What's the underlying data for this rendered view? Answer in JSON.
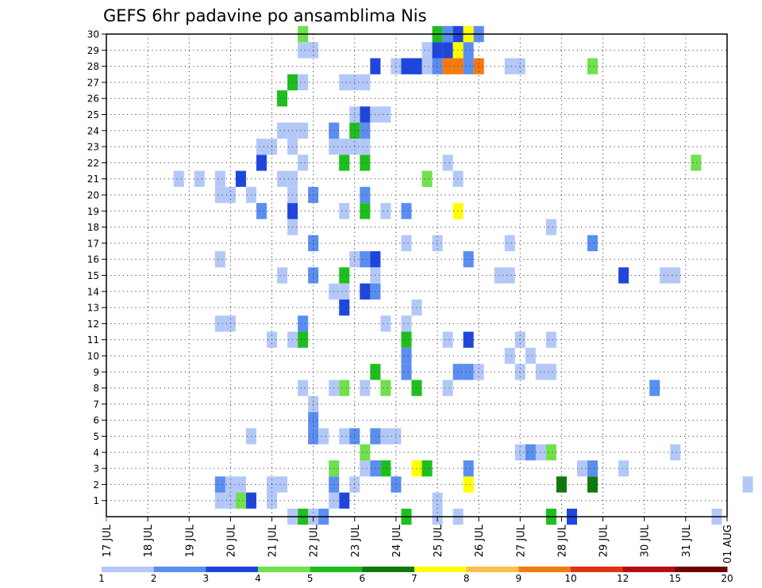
{
  "chart_data": {
    "type": "heatmap",
    "title": "GEFS 6hr padavine po ansamblima Nis",
    "xlabel": "",
    "ylabel": "",
    "x_ticks": [
      "17 JUL",
      "18 JUL",
      "19 JUL",
      "20 JUL",
      "21 JUL",
      "22 JUL",
      "23 JUL",
      "24 JUL",
      "25 JUL",
      "26 JUL",
      "27 JUL",
      "28 JUL",
      "29 JUL",
      "30 JUL",
      "31 JUL",
      "01 AUG"
    ],
    "y_ticks": [
      "1",
      "2",
      "3",
      "4",
      "5",
      "6",
      "7",
      "8",
      "9",
      "10",
      "11",
      "12",
      "13",
      "14",
      "15",
      "16",
      "17",
      "18",
      "19",
      "20",
      "21",
      "22",
      "23",
      "24",
      "25",
      "26",
      "27",
      "28",
      "29",
      "30"
    ],
    "x_unit": "days from 17 JUL 00Z, 6-hour steps",
    "ylim": [
      0,
      30
    ],
    "grid": true,
    "legend": {
      "position": "bottom",
      "levels": [
        "1",
        "2",
        "3",
        "4",
        "5",
        "6",
        "7",
        "8",
        "9",
        "10",
        "12",
        "15",
        "20"
      ],
      "colors": [
        "#b4c8f8",
        "#5a8ef0",
        "#1f46dc",
        "#6fe04e",
        "#1fbe1f",
        "#0e7a0e",
        "#ffff00",
        "#ffbf46",
        "#f47a10",
        "#e1330f",
        "#b40e0e",
        "#6e0000"
      ]
    },
    "cells": [
      [
        8.0,
        1,
        "#b4c8f8"
      ],
      [
        5.75,
        1,
        "#1f46dc"
      ],
      [
        5.5,
        1,
        "#b4c8f8"
      ],
      [
        4.0,
        1,
        "#b4c8f8"
      ],
      [
        3.5,
        1,
        "#1f46dc"
      ],
      [
        3.25,
        1,
        "#6fe04e"
      ],
      [
        3.0,
        1,
        "#b4c8f8"
      ],
      [
        2.75,
        1,
        "#b4c8f8"
      ],
      [
        15.5,
        2,
        "#b4c8f8"
      ],
      [
        11.0,
        2,
        "#0e7a0e"
      ],
      [
        11.75,
        2,
        "#0e7a0e"
      ],
      [
        5.5,
        2,
        "#5a8ef0"
      ],
      [
        8.75,
        2,
        "#ffff00"
      ],
      [
        7.0,
        2,
        "#5a8ef0"
      ],
      [
        2.75,
        2,
        "#5a8ef0"
      ],
      [
        3.0,
        2,
        "#b4c8f8"
      ],
      [
        3.25,
        2,
        "#b4c8f8"
      ],
      [
        4.0,
        2,
        "#b4c8f8"
      ],
      [
        4.25,
        2,
        "#b4c8f8"
      ],
      [
        6.0,
        2,
        "#b4c8f8"
      ],
      [
        12.5,
        3,
        "#b4c8f8"
      ],
      [
        11.5,
        3,
        "#b4c8f8"
      ],
      [
        11.75,
        3,
        "#5a8ef0"
      ],
      [
        7.75,
        3,
        "#b4c8f8"
      ],
      [
        8.75,
        3,
        "#5a8ef0"
      ],
      [
        6.75,
        3,
        "#1fbe1f"
      ],
      [
        5.5,
        3,
        "#6fe04e"
      ],
      [
        6.25,
        3,
        "#b4c8f8"
      ],
      [
        6.5,
        3,
        "#5a8ef0"
      ],
      [
        7.5,
        3,
        "#ffff00"
      ],
      [
        7.75,
        3,
        "#1fbe1f"
      ],
      [
        13.75,
        4,
        "#b4c8f8"
      ],
      [
        10.5,
        4,
        "#b4c8f8"
      ],
      [
        10.75,
        4,
        "#6fe04e"
      ],
      [
        10.25,
        4,
        "#5a8ef0"
      ],
      [
        10.0,
        4,
        "#b4c8f8"
      ],
      [
        6.25,
        4,
        "#6fe04e"
      ],
      [
        5.0,
        5,
        "#5a8ef0"
      ],
      [
        6.75,
        5,
        "#b4c8f8"
      ],
      [
        5.75,
        5,
        "#b4c8f8"
      ],
      [
        6.0,
        5,
        "#5a8ef0"
      ],
      [
        3.5,
        5,
        "#b4c8f8"
      ],
      [
        6.5,
        5,
        "#5a8ef0"
      ],
      [
        7.0,
        5,
        "#b4c8f8"
      ],
      [
        5.25,
        5,
        "#b4c8f8"
      ],
      [
        5.0,
        6,
        "#5a8ef0"
      ],
      [
        5.0,
        7,
        "#b4c8f8"
      ],
      [
        8.25,
        8,
        "#b4c8f8"
      ],
      [
        4.75,
        8,
        "#b4c8f8"
      ],
      [
        5.75,
        8,
        "#6fe04e"
      ],
      [
        5.5,
        8,
        "#b4c8f8"
      ],
      [
        7.5,
        8,
        "#1fbe1f"
      ],
      [
        6.25,
        8,
        "#b4c8f8"
      ],
      [
        13.25,
        8,
        "#5a8ef0"
      ],
      [
        6.75,
        8,
        "#6fe04e"
      ],
      [
        8.5,
        9,
        "#5a8ef0"
      ],
      [
        8.75,
        9,
        "#5a8ef0"
      ],
      [
        10.5,
        9,
        "#b4c8f8"
      ],
      [
        7.25,
        9,
        "#5a8ef0"
      ],
      [
        10.75,
        9,
        "#b4c8f8"
      ],
      [
        9.0,
        9,
        "#b4c8f8"
      ],
      [
        6.5,
        9,
        "#1fbe1f"
      ],
      [
        10.0,
        9,
        "#b4c8f8"
      ],
      [
        7.25,
        10,
        "#5a8ef0"
      ],
      [
        10.25,
        10,
        "#b4c8f8"
      ],
      [
        9.75,
        10,
        "#b4c8f8"
      ],
      [
        8.75,
        11,
        "#1f46dc"
      ],
      [
        10.0,
        11,
        "#b4c8f8"
      ],
      [
        10.75,
        11,
        "#b4c8f8"
      ],
      [
        7.25,
        11,
        "#1fbe1f"
      ],
      [
        4.0,
        11,
        "#b4c8f8"
      ],
      [
        8.25,
        11,
        "#b4c8f8"
      ],
      [
        4.5,
        11,
        "#b4c8f8"
      ],
      [
        4.75,
        11,
        "#1fbe1f"
      ],
      [
        4.75,
        12,
        "#5a8ef0"
      ],
      [
        6.75,
        12,
        "#b4c8f8"
      ],
      [
        7.25,
        12,
        "#b4c8f8"
      ],
      [
        3.0,
        12,
        "#b4c8f8"
      ],
      [
        2.75,
        12,
        "#b4c8f8"
      ],
      [
        5.75,
        13,
        "#1f46dc"
      ],
      [
        7.5,
        13,
        "#b4c8f8"
      ],
      [
        5.75,
        14,
        "#b4c8f8"
      ],
      [
        6.5,
        14,
        "#5a8ef0"
      ],
      [
        5.5,
        14,
        "#b4c8f8"
      ],
      [
        6.25,
        14,
        "#1f46dc"
      ],
      [
        6.5,
        15,
        "#b4c8f8"
      ],
      [
        5.0,
        15,
        "#5a8ef0"
      ],
      [
        9.5,
        15,
        "#b4c8f8"
      ],
      [
        12.5,
        15,
        "#1f46dc"
      ],
      [
        4.25,
        15,
        "#b4c8f8"
      ],
      [
        5.75,
        15,
        "#1fbe1f"
      ],
      [
        9.75,
        15,
        "#b4c8f8"
      ],
      [
        13.5,
        15,
        "#b4c8f8"
      ],
      [
        13.75,
        15,
        "#b4c8f8"
      ],
      [
        6.25,
        16,
        "#ffff00"
      ],
      [
        2.75,
        16,
        "#b4c8f8"
      ],
      [
        6.0,
        16,
        "#b4c8f8"
      ],
      [
        6.25,
        16,
        "#5a8ef0"
      ],
      [
        6.5,
        16,
        "#1f46dc"
      ],
      [
        8.75,
        16,
        "#5a8ef0"
      ],
      [
        8.0,
        17,
        "#b4c8f8"
      ],
      [
        9.75,
        17,
        "#b4c8f8"
      ],
      [
        11.75,
        17,
        "#5a8ef0"
      ],
      [
        5.0,
        17,
        "#5a8ef0"
      ],
      [
        7.25,
        17,
        "#b4c8f8"
      ],
      [
        10.75,
        18,
        "#b4c8f8"
      ],
      [
        4.5,
        18,
        "#b4c8f8"
      ],
      [
        4.5,
        19,
        "#1f46dc"
      ],
      [
        8.5,
        19,
        "#ffff00"
      ],
      [
        6.75,
        19,
        "#b4c8f8"
      ],
      [
        5.75,
        19,
        "#b4c8f8"
      ],
      [
        6.25,
        19,
        "#1fbe1f"
      ],
      [
        3.75,
        19,
        "#5a8ef0"
      ],
      [
        7.25,
        19,
        "#5a8ef0"
      ],
      [
        5.0,
        20,
        "#5a8ef0"
      ],
      [
        3.5,
        20,
        "#b4c8f8"
      ],
      [
        3.0,
        20,
        "#b4c8f8"
      ],
      [
        2.75,
        20,
        "#b4c8f8"
      ],
      [
        6.25,
        20,
        "#5a8ef0"
      ],
      [
        4.5,
        20,
        "#b4c8f8"
      ],
      [
        3.25,
        21,
        "#1f46dc"
      ],
      [
        2.75,
        21,
        "#b4c8f8"
      ],
      [
        7.75,
        21,
        "#6fe04e"
      ],
      [
        4.5,
        21,
        "#b4c8f8"
      ],
      [
        4.25,
        21,
        "#b4c8f8"
      ],
      [
        2.25,
        21,
        "#b4c8f8"
      ],
      [
        8.5,
        21,
        "#b4c8f8"
      ],
      [
        1.75,
        21,
        "#b4c8f8"
      ],
      [
        5.75,
        22,
        "#b4c8f8"
      ],
      [
        8.25,
        22,
        "#b4c8f8"
      ],
      [
        14.25,
        22,
        "#6fe04e"
      ],
      [
        4.75,
        22,
        "#b4c8f8"
      ],
      [
        3.75,
        22,
        "#1f46dc"
      ],
      [
        5.75,
        22,
        "#1fbe1f"
      ],
      [
        6.25,
        22,
        "#1fbe1f"
      ],
      [
        3.75,
        23,
        "#b4c8f8"
      ],
      [
        4.0,
        23,
        "#b4c8f8"
      ],
      [
        4.5,
        23,
        "#b4c8f8"
      ],
      [
        5.75,
        23,
        "#b4c8f8"
      ],
      [
        5.5,
        23,
        "#b4c8f8"
      ],
      [
        6.0,
        23,
        "#b4c8f8"
      ],
      [
        6.25,
        23,
        "#b4c8f8"
      ],
      [
        6.0,
        24,
        "#1fbe1f"
      ],
      [
        4.25,
        24,
        "#b4c8f8"
      ],
      [
        4.5,
        24,
        "#b4c8f8"
      ],
      [
        4.75,
        24,
        "#b4c8f8"
      ],
      [
        5.5,
        24,
        "#5a8ef0"
      ],
      [
        6.25,
        24,
        "#5a8ef0"
      ],
      [
        6.25,
        25,
        "#1f46dc"
      ],
      [
        6.0,
        25,
        "#b4c8f8"
      ],
      [
        6.5,
        25,
        "#b4c8f8"
      ],
      [
        6.75,
        25,
        "#b4c8f8"
      ],
      [
        4.25,
        26,
        "#1fbe1f"
      ],
      [
        4.5,
        27,
        "#1fbe1f"
      ],
      [
        4.75,
        27,
        "#b4c8f8"
      ],
      [
        5.75,
        27,
        "#b4c8f8"
      ],
      [
        6.0,
        27,
        "#b4c8f8"
      ],
      [
        6.25,
        27,
        "#b4c8f8"
      ],
      [
        7.5,
        28,
        "#6fe04e"
      ],
      [
        6.5,
        28,
        "#1f46dc"
      ],
      [
        7.0,
        28,
        "#b4c8f8"
      ],
      [
        7.25,
        28,
        "#1f46dc"
      ],
      [
        7.5,
        28,
        "#1f46dc"
      ],
      [
        7.75,
        28,
        "#b4c8f8"
      ],
      [
        8.0,
        28,
        "#5a8ef0"
      ],
      [
        8.25,
        28,
        "#f47a10"
      ],
      [
        8.5,
        28,
        "#f47a10"
      ],
      [
        8.75,
        28,
        "#5a8ef0"
      ],
      [
        9.0,
        28,
        "#f47a10"
      ],
      [
        9.75,
        28,
        "#b4c8f8"
      ],
      [
        10.0,
        28,
        "#b4c8f8"
      ],
      [
        11.75,
        28,
        "#6fe04e"
      ],
      [
        4.75,
        29,
        "#b4c8f8"
      ],
      [
        5.0,
        29,
        "#b4c8f8"
      ],
      [
        7.75,
        29,
        "#b4c8f8"
      ],
      [
        8.0,
        29,
        "#1f46dc"
      ],
      [
        8.25,
        29,
        "#1f46dc"
      ],
      [
        8.5,
        29,
        "#ffff00"
      ],
      [
        8.75,
        29,
        "#5a8ef0"
      ],
      [
        4.75,
        30,
        "#6fe04e"
      ],
      [
        8.0,
        30,
        "#1fbe1f"
      ],
      [
        8.25,
        30,
        "#5a8ef0"
      ],
      [
        8.5,
        30,
        "#1f46dc"
      ],
      [
        8.75,
        30,
        "#ffff00"
      ],
      [
        9.0,
        30,
        "#5a8ef0"
      ],
      [
        8.0,
        0,
        "#b4c8f8"
      ],
      [
        4.5,
        0,
        "#b4c8f8"
      ],
      [
        4.75,
        0,
        "#1fbe1f"
      ],
      [
        5.0,
        0,
        "#b4c8f8"
      ],
      [
        5.25,
        0,
        "#5a8ef0"
      ],
      [
        7.25,
        0,
        "#1fbe1f"
      ],
      [
        10.75,
        0,
        "#1fbe1f"
      ],
      [
        11.25,
        0,
        "#1f46dc"
      ],
      [
        8.5,
        0,
        "#b4c8f8"
      ],
      [
        14.75,
        0,
        "#b4c8f8"
      ]
    ]
  }
}
